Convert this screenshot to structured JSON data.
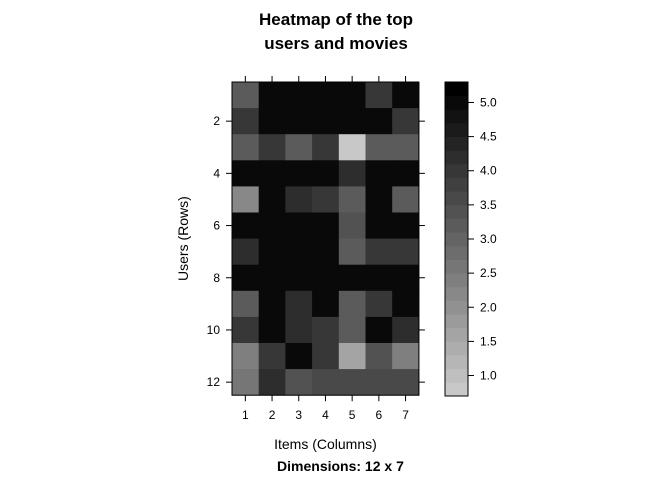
{
  "chart_data": {
    "type": "heatmap",
    "title_lines": [
      "Heatmap of the top",
      "users and movies"
    ],
    "xlabel": "Items (Columns)",
    "ylabel": "Users (Rows)",
    "subtitle": "Dimensions: 12 x 7",
    "x_ticks": [
      1,
      2,
      3,
      4,
      5,
      6,
      7
    ],
    "y_ticks": [
      2,
      4,
      6,
      8,
      10,
      12
    ],
    "rows": 12,
    "cols": 7,
    "values": [
      [
        3.1,
        5.0,
        5.0,
        5.0,
        5.0,
        4.0,
        5.0
      ],
      [
        4.0,
        5.0,
        5.0,
        5.0,
        5.0,
        5.0,
        4.0
      ],
      [
        3.3,
        4.0,
        3.1,
        4.0,
        0.7,
        3.2,
        3.2
      ],
      [
        5.0,
        5.0,
        5.0,
        5.0,
        4.2,
        5.0,
        5.0
      ],
      [
        2.1,
        5.0,
        4.2,
        4.0,
        3.2,
        5.0,
        3.2
      ],
      [
        5.0,
        5.0,
        5.0,
        5.0,
        3.4,
        5.0,
        5.0
      ],
      [
        4.2,
        5.0,
        5.0,
        5.0,
        3.2,
        4.0,
        4.0
      ],
      [
        5.0,
        5.0,
        5.0,
        5.0,
        5.0,
        5.0,
        5.0
      ],
      [
        3.2,
        5.0,
        4.2,
        5.0,
        3.2,
        4.0,
        5.0
      ],
      [
        4.0,
        5.0,
        4.2,
        4.0,
        3.3,
        5.0,
        4.2
      ],
      [
        2.4,
        4.0,
        5.0,
        4.0,
        1.6,
        3.4,
        2.4
      ],
      [
        2.6,
        4.2,
        3.4,
        3.5,
        3.6,
        3.5,
        3.6
      ]
    ],
    "zlim": [
      0.7,
      5.3
    ],
    "colorbar_ticks": [
      {
        "value": 1.0,
        "label": "1.0"
      },
      {
        "value": 1.5,
        "label": "1.5"
      },
      {
        "value": 2.0,
        "label": "2.0"
      },
      {
        "value": 2.5,
        "label": "2.5"
      },
      {
        "value": 3.0,
        "label": "3.0"
      },
      {
        "value": 3.5,
        "label": "3.5"
      },
      {
        "value": 4.0,
        "label": "4.0"
      },
      {
        "value": 4.5,
        "label": "4.5"
      },
      {
        "value": 5.0,
        "label": "5.0"
      }
    ],
    "colorbar_levels": 23,
    "color_low": "#c8c8c8",
    "color_high": "#000000",
    "grid": false,
    "legend_position": "right"
  }
}
